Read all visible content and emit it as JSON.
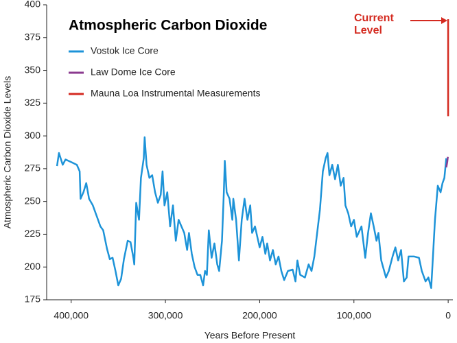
{
  "chart_data": {
    "type": "line",
    "title": "Atmospheric Carbon Dioxide",
    "x_label": "Years Before Present",
    "y_label": "Atmospheric Carbon Dioxide Levels",
    "annotation": "Current Level",
    "annotation_color": "#d42a20",
    "xlim": [
      426000,
      -5000
    ],
    "ylim": [
      175,
      400
    ],
    "xticks": [
      {
        "value": 400000,
        "label": "400,000"
      },
      {
        "value": 300000,
        "label": "300,000"
      },
      {
        "value": 200000,
        "label": "200,000"
      },
      {
        "value": 100000,
        "label": "100,000"
      },
      0
    ],
    "yticks": [
      175,
      200,
      225,
      250,
      275,
      300,
      325,
      350,
      375,
      400
    ],
    "series": [
      {
        "name": "Vostok Ice Core",
        "color": "#1d93d8",
        "x": [
          415000,
          413000,
          409000,
          406000,
          400000,
          394000,
          391000,
          390000,
          387000,
          384000,
          381000,
          377000,
          372000,
          369000,
          366000,
          362000,
          359000,
          356000,
          353000,
          350000,
          347000,
          344000,
          340000,
          337000,
          334000,
          333000,
          331000,
          328000,
          326000,
          323000,
          322000,
          320000,
          317000,
          314000,
          311000,
          308000,
          305000,
          303000,
          301000,
          298000,
          295000,
          292000,
          289000,
          286000,
          283000,
          280000,
          277000,
          275000,
          272000,
          269000,
          266000,
          263000,
          260000,
          258000,
          256000,
          254000,
          251000,
          248000,
          245000,
          243000,
          240000,
          238000,
          237000,
          235000,
          232000,
          229000,
          228000,
          225000,
          222000,
          219000,
          216000,
          213000,
          210000,
          208000,
          205000,
          200000,
          197000,
          194000,
          192000,
          189000,
          186000,
          183000,
          180000,
          177000,
          174000,
          170000,
          165000,
          162000,
          160000,
          157000,
          152000,
          148000,
          145000,
          142000,
          139000,
          136000,
          133000,
          130000,
          128000,
          126000,
          123000,
          120000,
          117000,
          114000,
          111000,
          109000,
          106000,
          103000,
          100000,
          97000,
          92000,
          88000,
          85000,
          82000,
          79000,
          76000,
          74000,
          71000,
          66000,
          63000,
          59000,
          56000,
          53000,
          50000,
          47000,
          44000,
          42000,
          36000,
          31000,
          28000,
          24000,
          21000,
          18000,
          17000,
          14000,
          11000,
          8000,
          6000,
          4000,
          2000
        ],
        "values": [
          277,
          287,
          278,
          282,
          280,
          278,
          273,
          252,
          257,
          264,
          252,
          247,
          237,
          231,
          228,
          214,
          206,
          207,
          197,
          186,
          191,
          206,
          220,
          219,
          207,
          202,
          249,
          236,
          268,
          283,
          299,
          278,
          268,
          270,
          257,
          249,
          255,
          273,
          247,
          257,
          231,
          247,
          220,
          236,
          231,
          226,
          213,
          226,
          210,
          200,
          194,
          194,
          186,
          197,
          194,
          228,
          207,
          218,
          202,
          197,
          220,
          257,
          281,
          257,
          252,
          236,
          252,
          236,
          205,
          236,
          252,
          236,
          247,
          226,
          231,
          215,
          223,
          210,
          218,
          205,
          213,
          202,
          208,
          197,
          190,
          197,
          198,
          189,
          205,
          194,
          192,
          202,
          197,
          208,
          226,
          244,
          273,
          283,
          287,
          270,
          278,
          267,
          278,
          262,
          268,
          247,
          241,
          231,
          236,
          223,
          231,
          207,
          226,
          241,
          231,
          220,
          226,
          205,
          192,
          197,
          208,
          215,
          205,
          213,
          189,
          192,
          208,
          208,
          207,
          197,
          189,
          192,
          184,
          197,
          236,
          262,
          257,
          264,
          268,
          283
        ]
      },
      {
        "name": "Law Dome Ice Core",
        "color": "#8b3a8f",
        "x": [
          2000,
          1000,
          300
        ],
        "values": [
          276,
          280,
          284
        ]
      },
      {
        "name": "Mauna Loa Instrumental Measurements",
        "color": "#d42a20",
        "x": [
          52,
          0
        ],
        "values": [
          315,
          389
        ]
      }
    ]
  }
}
